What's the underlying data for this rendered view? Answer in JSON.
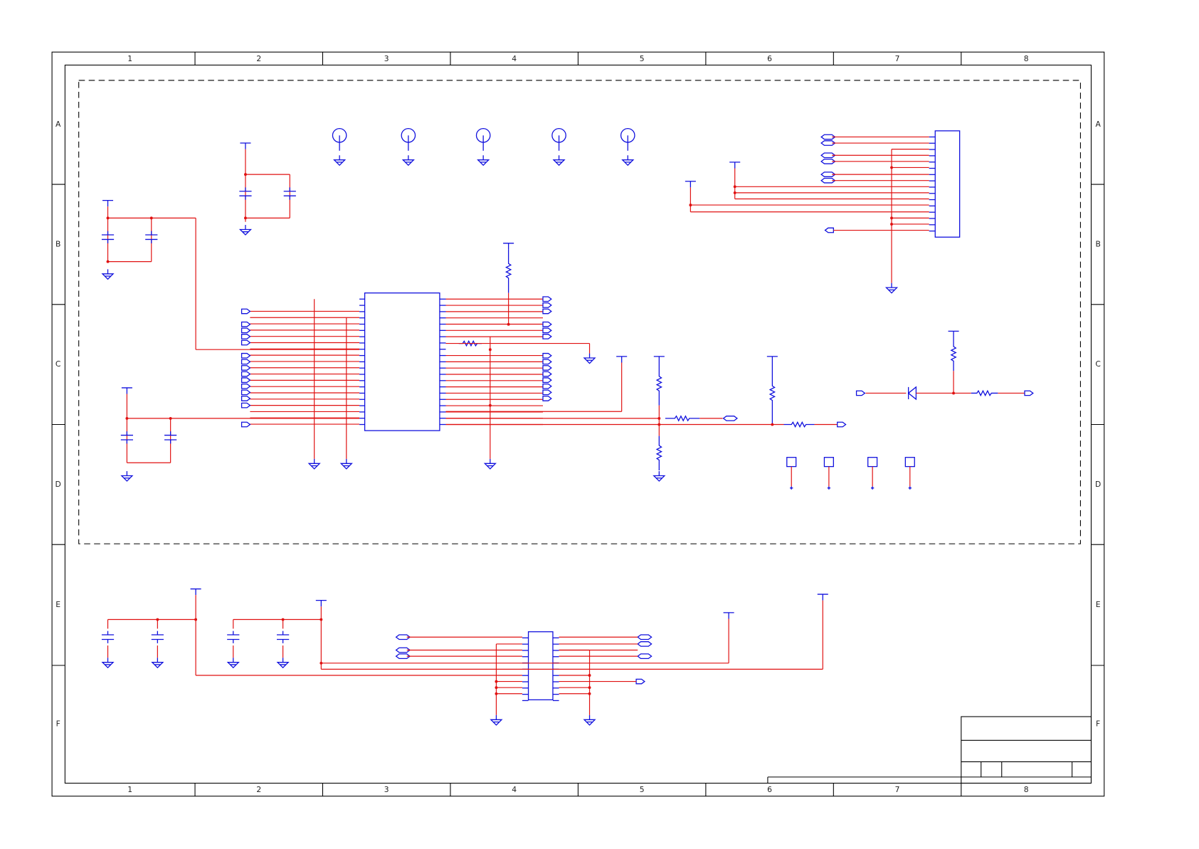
{
  "border": {
    "columns": [
      "1",
      "2",
      "3",
      "4",
      "5",
      "6",
      "7",
      "8"
    ],
    "rows": [
      "A",
      "B",
      "C",
      "D",
      "E",
      "F"
    ]
  }
}
